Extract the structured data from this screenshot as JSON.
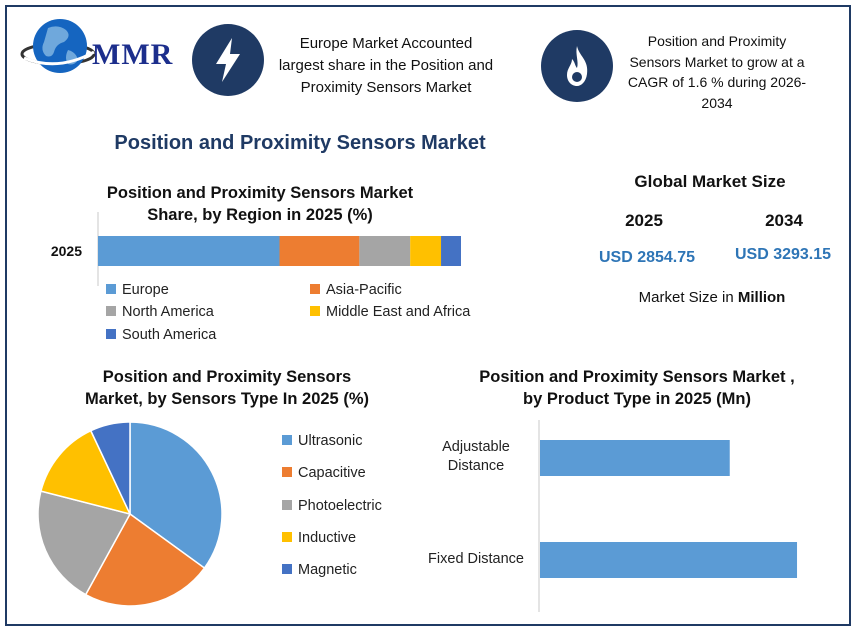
{
  "header": {
    "logo_text": "MMR",
    "callout_left": [
      "Europe Market Accounted",
      "largest share in the Position and",
      "Proximity Sensors Market"
    ],
    "callout_right": [
      "Position and Proximity",
      "Sensors Market to grow at a",
      "CAGR of  1.6 % during 2026-",
      "2034"
    ]
  },
  "main_title": "Position and Proximity Sensors Market",
  "global_market": {
    "title": "Global Market Size",
    "year_a": "2025",
    "year_b": "2034",
    "value_a": "USD 2854.75",
    "value_b": "USD 3293.15",
    "unit_prefix": "Market Size in",
    "unit_bold": "Million"
  },
  "colors": {
    "blue": "#5b9bd5",
    "orange": "#ed7d31",
    "gray": "#a5a5a5",
    "yellow": "#ffc000",
    "darkblue": "#4472c4",
    "navy": "#1f3a64"
  },
  "chart_data": [
    {
      "type": "bar",
      "orientation": "horizontal-stacked",
      "title": [
        "Position and Proximity Sensors Market",
        "Share, by Region in 2025 (%)"
      ],
      "categories": [
        "2025"
      ],
      "series": [
        {
          "name": "Europe",
          "values": [
            50
          ]
        },
        {
          "name": "Asia-Pacific",
          "values": [
            22
          ]
        },
        {
          "name": "North America",
          "values": [
            14
          ]
        },
        {
          "name": "Middle East and Africa",
          "values": [
            8.5
          ]
        },
        {
          "name": "South America",
          "values": [
            5.5
          ]
        }
      ],
      "xlim": [
        0,
        100
      ],
      "legend": "bottom"
    },
    {
      "type": "pie",
      "title": [
        "Position and Proximity Sensors",
        "Market, by Sensors Type In 2025 (%)"
      ],
      "labels": [
        "Ultrasonic",
        "Capacitive",
        "Photoelectric",
        "Inductive",
        "Magnetic"
      ],
      "values": [
        35,
        23,
        21,
        14,
        7
      ],
      "legend": "right"
    },
    {
      "type": "bar",
      "orientation": "horizontal",
      "title": [
        "Position and Proximity Sensors Market ,",
        "by Product Type in 2025 (Mn)"
      ],
      "categories": [
        "Adjustable Distance",
        "Fixed Distance"
      ],
      "category_lines": [
        [
          "Adjustable",
          "Distance"
        ],
        [
          "Fixed Distance"
        ]
      ],
      "values": [
        1100,
        1490
      ],
      "xlim": [
        0,
        1600
      ]
    }
  ]
}
